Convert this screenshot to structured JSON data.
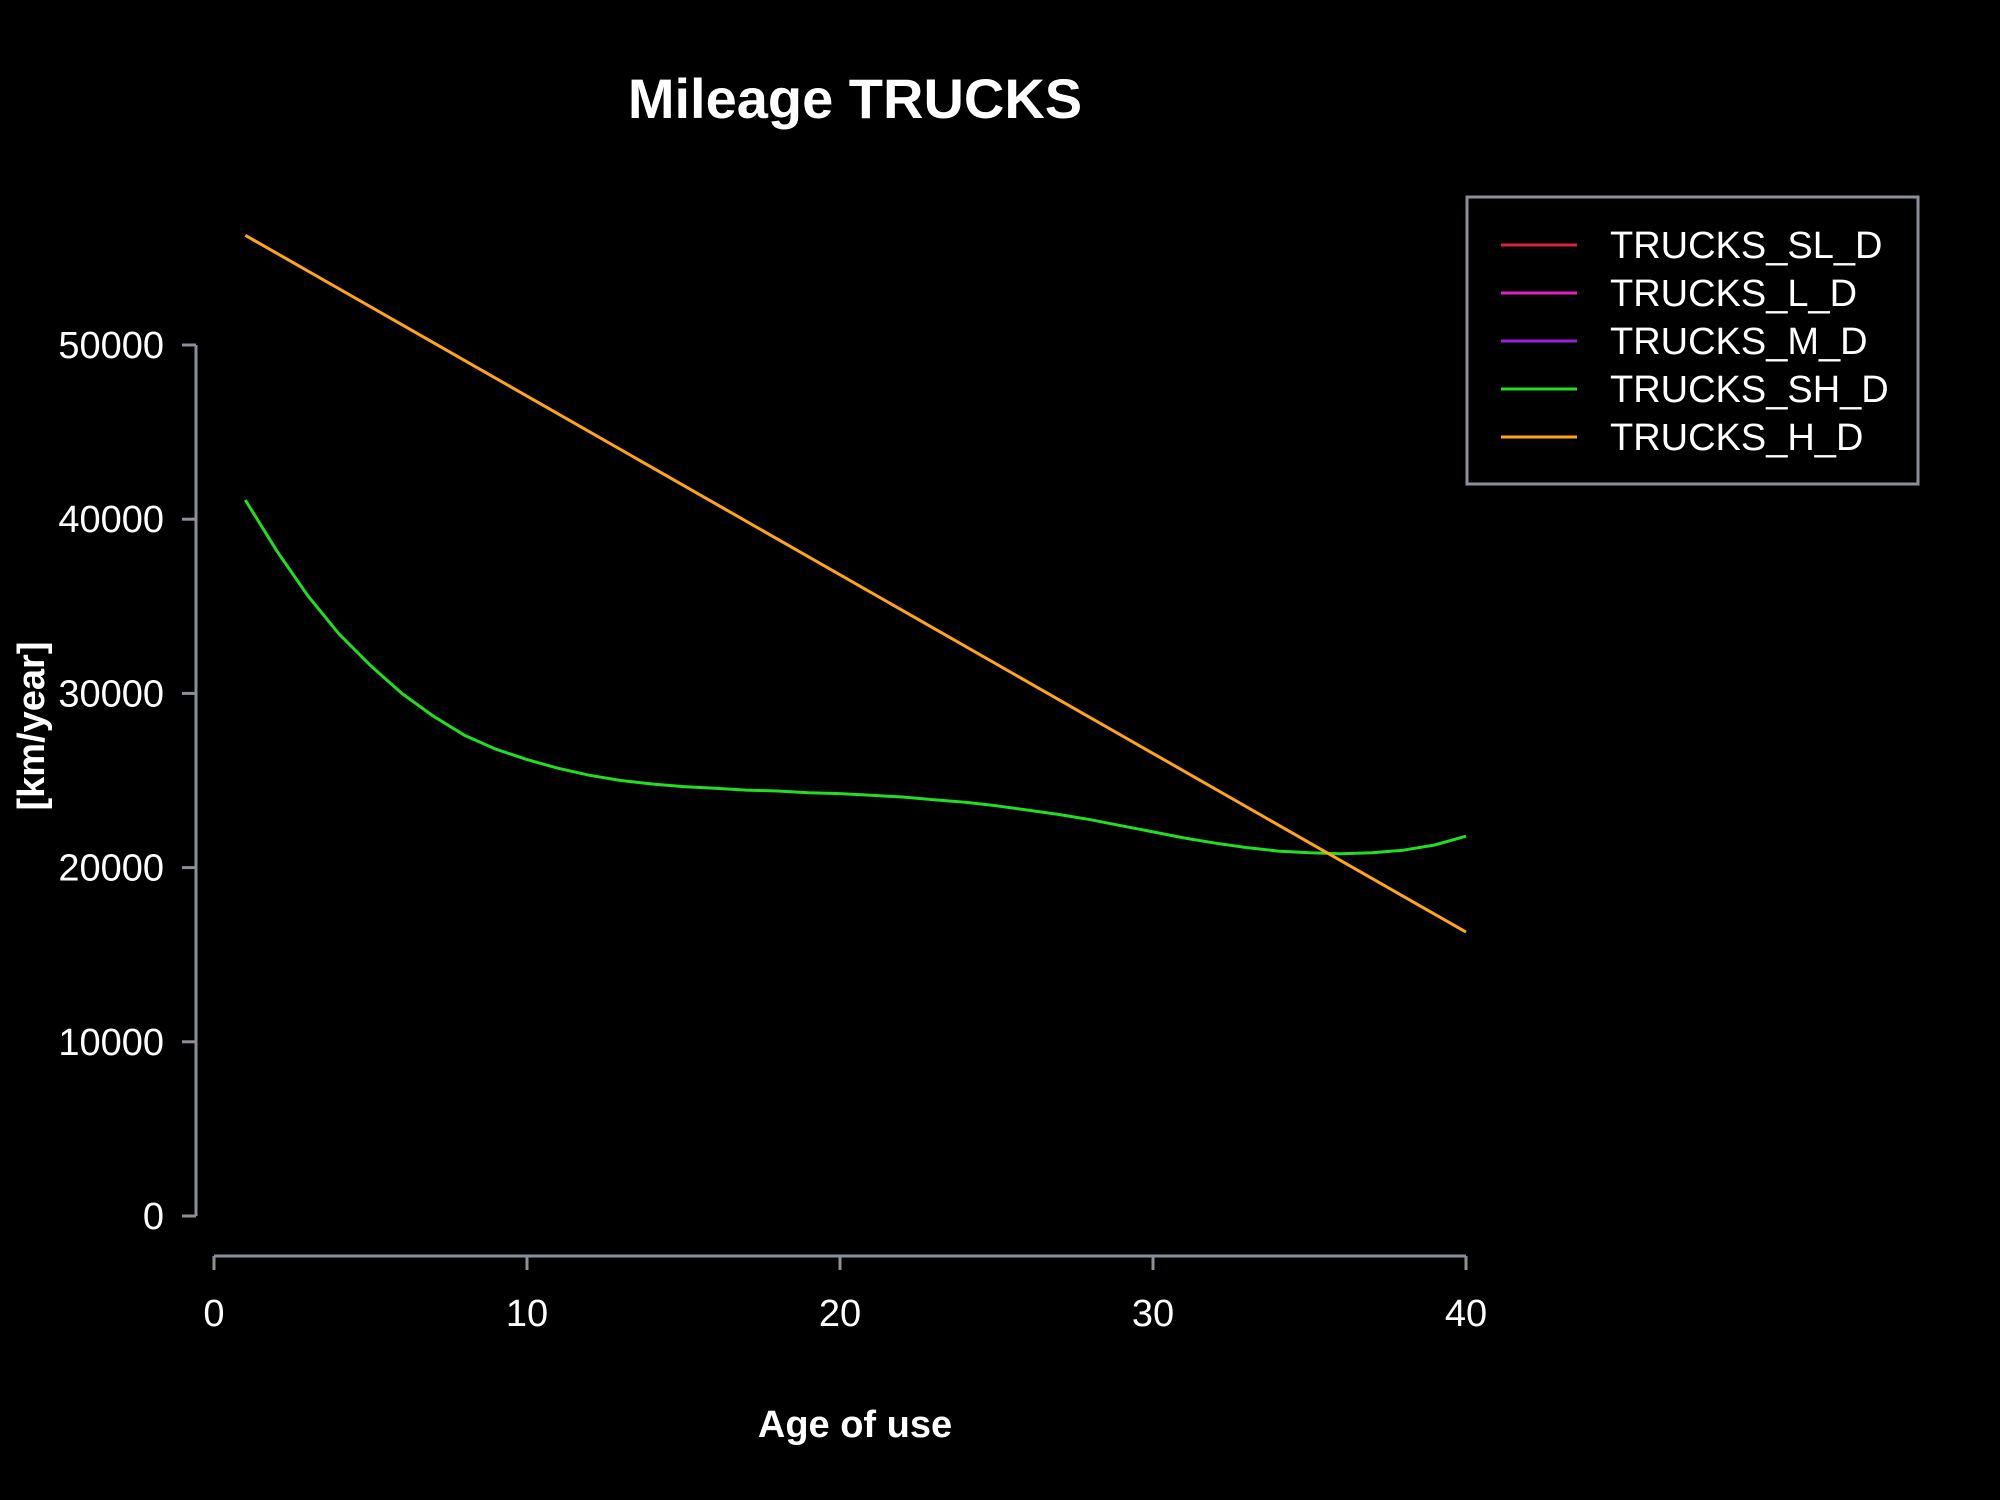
{
  "chart_data": {
    "type": "line",
    "title": "Mileage TRUCKS",
    "xlabel": "Age of use",
    "ylabel": "[km/year]",
    "xlim": [
      0,
      40
    ],
    "ylim": [
      0,
      50000
    ],
    "x_ticks": [
      "0",
      "10",
      "20",
      "30",
      "40"
    ],
    "y_ticks": [
      "0",
      "10000",
      "20000",
      "30000",
      "40000",
      "50000"
    ],
    "grid": false,
    "legend_position": "top-right",
    "series": [
      {
        "name": "TRUCKS_SL_D",
        "color": "#e0203c",
        "x": [],
        "y": []
      },
      {
        "name": "TRUCKS_L_D",
        "color": "#e020c8",
        "x": [],
        "y": []
      },
      {
        "name": "TRUCKS_M_D",
        "color": "#9a20e0",
        "x": [],
        "y": []
      },
      {
        "name": "TRUCKS_SH_D",
        "color": "#22dd22",
        "x": [
          1,
          2,
          3,
          4,
          5,
          6,
          7,
          8,
          9,
          10,
          11,
          12,
          13,
          14,
          15,
          16,
          17,
          18,
          19,
          20,
          21,
          22,
          23,
          24,
          25,
          26,
          27,
          28,
          29,
          30,
          31,
          32,
          33,
          34,
          35,
          36,
          37,
          38,
          39,
          40
        ],
        "y": [
          41100,
          38200,
          35600,
          33400,
          31600,
          30000,
          28700,
          27600,
          26800,
          26200,
          25700,
          25300,
          25000,
          24800,
          24650,
          24550,
          24450,
          24400,
          24300,
          24250,
          24150,
          24050,
          23900,
          23750,
          23550,
          23300,
          23050,
          22750,
          22400,
          22050,
          21700,
          21400,
          21150,
          20950,
          20850,
          20800,
          20850,
          21000,
          21300,
          21800
        ]
      },
      {
        "name": "TRUCKS_H_D",
        "color": "#ffa51a",
        "x": [
          1,
          40
        ],
        "y": [
          56300,
          16300
        ]
      }
    ]
  }
}
